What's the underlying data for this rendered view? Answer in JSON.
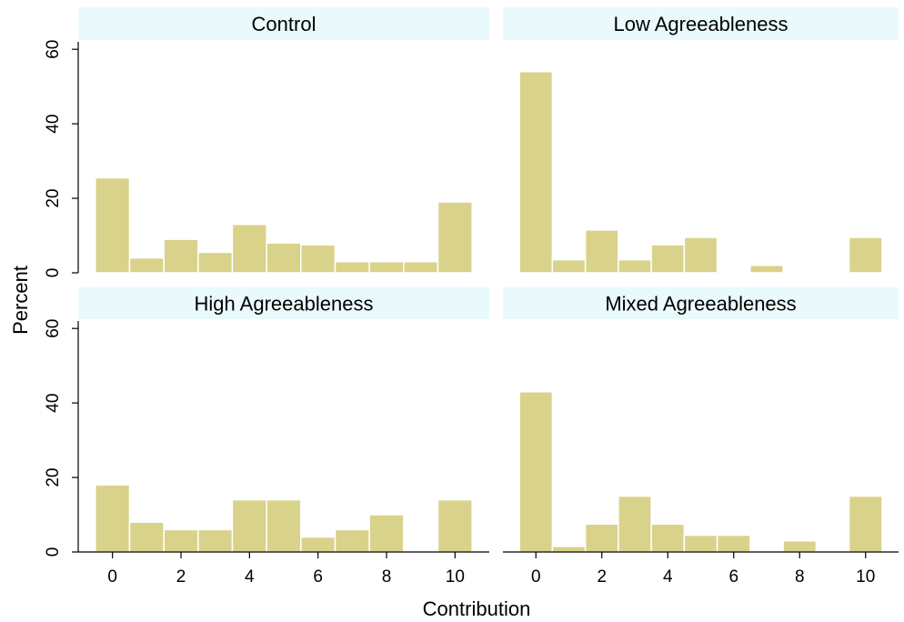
{
  "chart_data": {
    "type": "bar",
    "layout": "2x2 facet histogram",
    "xlabel": "Contribution",
    "ylabel": "Percent",
    "x_ticks": [
      0,
      2,
      4,
      6,
      8,
      10
    ],
    "y_ticks": [
      0,
      20,
      40,
      60
    ],
    "xlim": [
      -1,
      11
    ],
    "ylim": [
      0,
      62
    ],
    "bar_color": "#d9d28a",
    "bar_edge_color": "#ffffff",
    "strip_color": "#eafafc",
    "x_tick_labels": [
      "0",
      "2",
      "4",
      "6",
      "8",
      "10"
    ],
    "y_tick_labels": [
      "0",
      "20",
      "40",
      "60"
    ],
    "panels": [
      {
        "title": "Control",
        "x": [
          0,
          1,
          2,
          3,
          4,
          5,
          6,
          7,
          8,
          9,
          10
        ],
        "values": [
          25.5,
          4.0,
          9.0,
          5.5,
          13.0,
          8.0,
          7.5,
          3.0,
          3.0,
          3.0,
          19.0
        ]
      },
      {
        "title": "Low Agreeableness",
        "x": [
          0,
          1,
          2,
          3,
          4,
          5,
          6,
          7,
          8,
          9,
          10
        ],
        "values": [
          54.0,
          3.5,
          11.5,
          3.5,
          7.5,
          9.5,
          0,
          2.0,
          0,
          0,
          9.5
        ]
      },
      {
        "title": "High Agreeableness",
        "x": [
          0,
          1,
          2,
          3,
          4,
          5,
          6,
          7,
          8,
          9,
          10
        ],
        "values": [
          18.0,
          8.0,
          6.0,
          6.0,
          14.0,
          14.0,
          4.0,
          6.0,
          10.0,
          0,
          14.0
        ]
      },
      {
        "title": "Mixed Agreeableness",
        "x": [
          0,
          1,
          2,
          3,
          4,
          5,
          6,
          7,
          8,
          9,
          10
        ],
        "values": [
          43.0,
          1.5,
          7.5,
          15.0,
          7.5,
          4.5,
          4.5,
          0,
          3.0,
          0,
          15.0
        ]
      }
    ]
  }
}
